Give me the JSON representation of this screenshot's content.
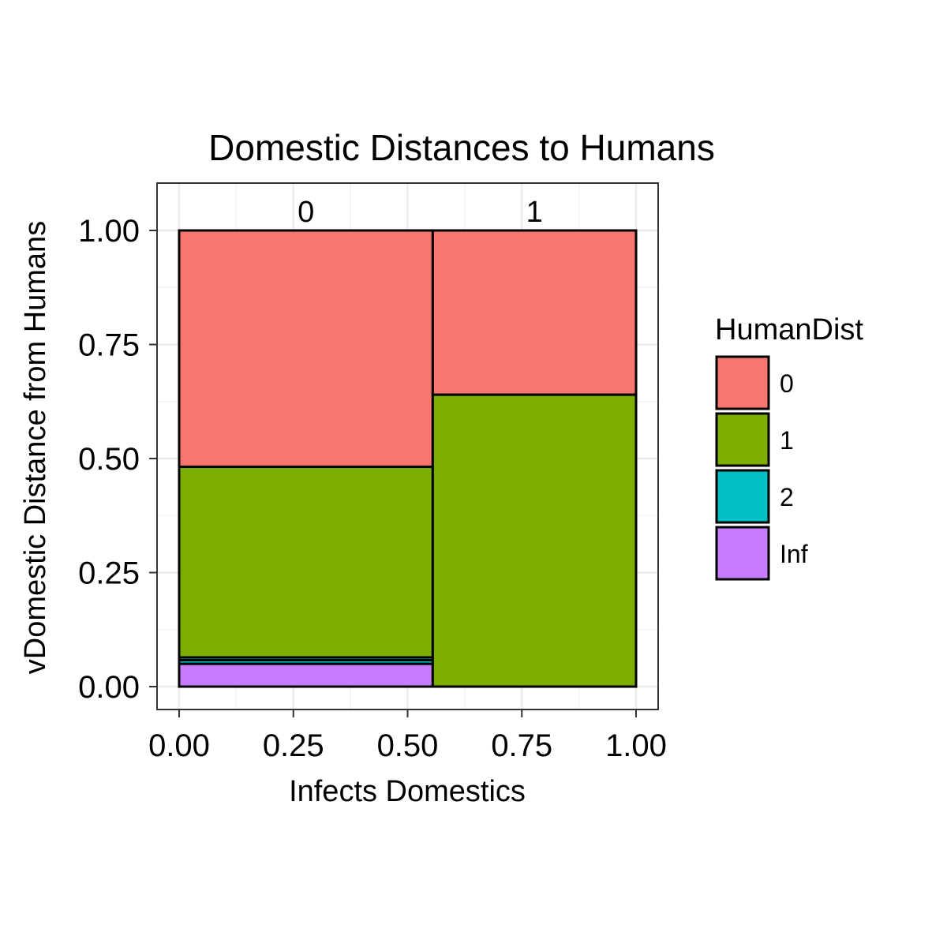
{
  "chart_data": {
    "type": "mosaic",
    "title": "Domestic Distances to Humans",
    "xlabel": "Infects Domestics",
    "ylabel": "vDomestic Distance from Humans",
    "xlim": [
      0,
      1
    ],
    "ylim": [
      0,
      1
    ],
    "x_ticks": [
      "0.00",
      "0.25",
      "0.50",
      "0.75",
      "1.00"
    ],
    "y_ticks": [
      "0.00",
      "0.25",
      "0.50",
      "0.75",
      "1.00"
    ],
    "grid": true,
    "legend_position": "right",
    "legend": {
      "title": "HumanDist",
      "entries": [
        {
          "label": "0",
          "color": "#F8766D"
        },
        {
          "label": "1",
          "color": "#7CAE00"
        },
        {
          "label": "2",
          "color": "#00BFC4"
        },
        {
          "label": "Inf",
          "color": "#C77CFF"
        }
      ]
    },
    "columns": [
      {
        "label": "0",
        "x_start": 0.0,
        "x_end": 0.555,
        "segments": [
          {
            "category": "Inf",
            "from": 0.0,
            "to": 0.05
          },
          {
            "category": "2",
            "from": 0.05,
            "to": 0.058
          },
          {
            "category": "2",
            "from": 0.058,
            "to": 0.064
          },
          {
            "category": "1",
            "from": 0.064,
            "to": 0.482
          },
          {
            "category": "0",
            "from": 0.482,
            "to": 1.0
          }
        ]
      },
      {
        "label": "1",
        "x_start": 0.555,
        "x_end": 1.0,
        "segments": [
          {
            "category": "1",
            "from": 0.0,
            "to": 0.64
          },
          {
            "category": "0",
            "from": 0.64,
            "to": 1.0
          }
        ]
      }
    ]
  }
}
